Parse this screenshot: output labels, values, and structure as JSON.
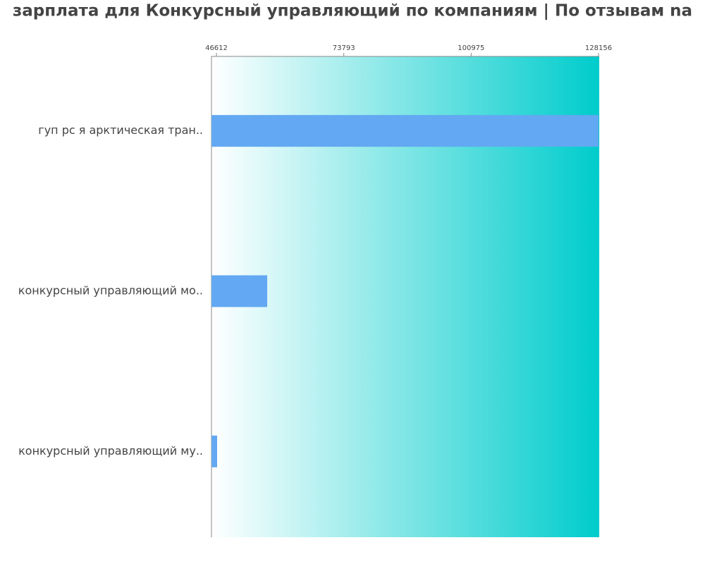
{
  "chart_data": {
    "type": "barh",
    "title": "зарплата для Конкурсный управляющий по компаниям  | По отзывам na",
    "categories": [
      "гуп рс я арктическая тран..",
      "конкурсный управляющий мо..",
      "конкурсный управляющий му.."
    ],
    "values": [
      128156,
      57444,
      46763
    ],
    "color": "#63a8f2",
    "xlim": [
      45559,
      128306
    ],
    "xticks": [
      46612,
      73793,
      100975,
      128156
    ],
    "background_gradient": [
      "#ffffff",
      "#00cccc"
    ]
  }
}
